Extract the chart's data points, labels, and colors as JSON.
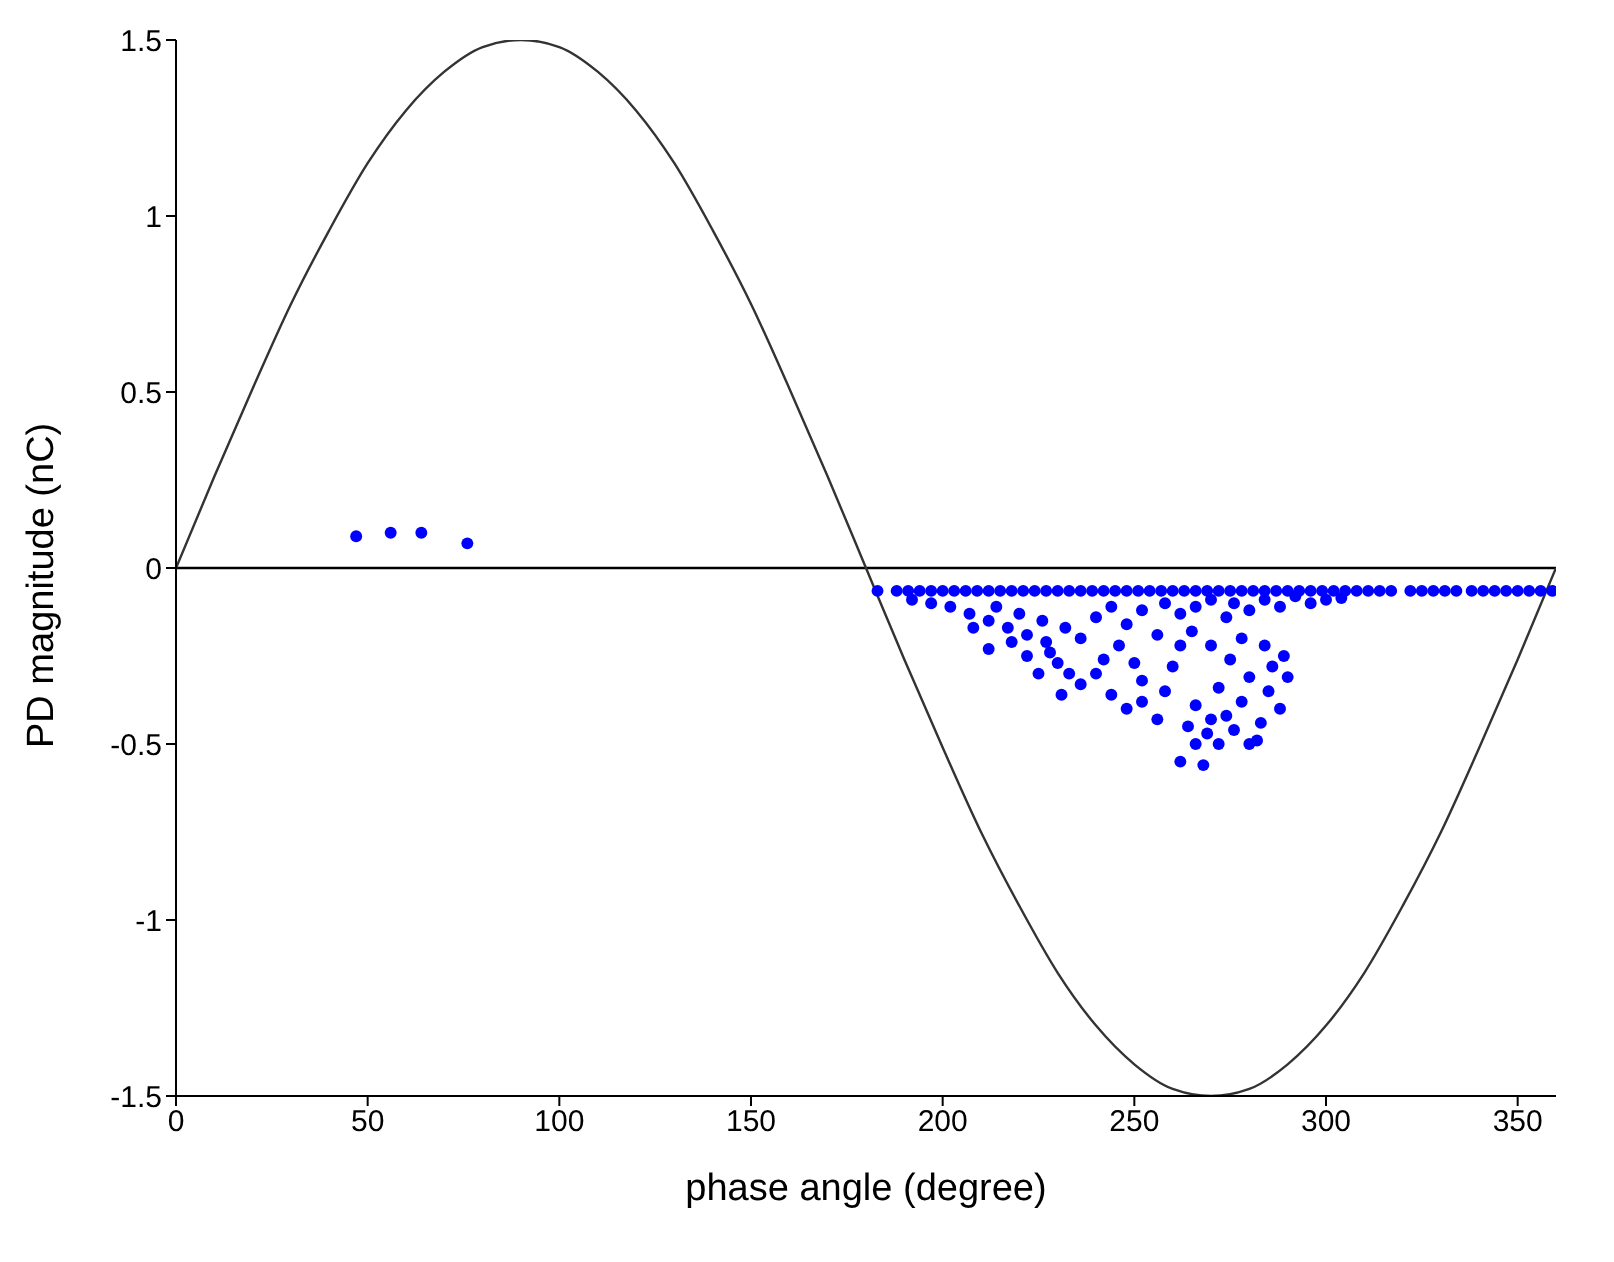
{
  "chart_data": {
    "type": "scatter",
    "xlabel": "phase angle (degree)",
    "ylabel": "PD magnitude (nC)",
    "xlim": [
      0,
      360
    ],
    "xticks": [
      0,
      50,
      100,
      150,
      200,
      250,
      300,
      350
    ],
    "ylim": [
      -1.5,
      1.5
    ],
    "yticks": [
      -1.5,
      -1,
      -0.5,
      0,
      0.5,
      1,
      1.5
    ],
    "grid": false,
    "marker": "circle",
    "ref_lines": [
      {
        "axis": "y",
        "value": 0,
        "label": null,
        "color": "#000000"
      }
    ],
    "series": [
      {
        "type": "line",
        "color": "#333333",
        "marker": "none",
        "x": [
          0,
          10,
          20,
          30,
          40,
          50,
          60,
          70,
          80,
          90,
          100,
          110,
          120,
          130,
          140,
          150,
          160,
          170,
          180,
          190,
          200,
          210,
          220,
          230,
          240,
          250,
          260,
          270,
          280,
          290,
          300,
          310,
          320,
          330,
          340,
          350,
          360
        ],
        "values": [
          0,
          0.26,
          0.51,
          0.75,
          0.96,
          1.15,
          1.3,
          1.41,
          1.48,
          1.5,
          1.48,
          1.41,
          1.3,
          1.15,
          0.96,
          0.75,
          0.51,
          0.26,
          0,
          -0.26,
          -0.51,
          -0.75,
          -0.96,
          -1.15,
          -1.3,
          -1.41,
          -1.48,
          -1.5,
          -1.48,
          -1.41,
          -1.3,
          -1.15,
          -0.96,
          -0.75,
          -0.51,
          -0.26,
          0
        ]
      },
      {
        "color": "#0000ff",
        "x": [
          47,
          56,
          64,
          76,
          183,
          188,
          191,
          194,
          197,
          200,
          203,
          206,
          209,
          212,
          215,
          218,
          221,
          224,
          227,
          230,
          233,
          236,
          239,
          242,
          245,
          248,
          251,
          254,
          257,
          260,
          263,
          266,
          269,
          272,
          275,
          278,
          281,
          284,
          287,
          290,
          293,
          296,
          299,
          302,
          305,
          308,
          311,
          314,
          317,
          322,
          325,
          328,
          331,
          334,
          338,
          341,
          344,
          347,
          350,
          353,
          356,
          359
        ],
        "values": [
          0.09,
          0.1,
          0.1,
          0.07,
          -0.065,
          -0.065,
          -0.065,
          -0.065,
          -0.065,
          -0.065,
          -0.065,
          -0.065,
          -0.065,
          -0.065,
          -0.065,
          -0.065,
          -0.065,
          -0.065,
          -0.065,
          -0.065,
          -0.065,
          -0.065,
          -0.065,
          -0.065,
          -0.065,
          -0.065,
          -0.065,
          -0.065,
          -0.065,
          -0.065,
          -0.065,
          -0.065,
          -0.065,
          -0.065,
          -0.065,
          -0.065,
          -0.065,
          -0.065,
          -0.065,
          -0.065,
          -0.065,
          -0.065,
          -0.065,
          -0.065,
          -0.065,
          -0.065,
          -0.065,
          -0.065,
          -0.065,
          -0.065,
          -0.065,
          -0.065,
          -0.065,
          -0.065,
          -0.065,
          -0.065,
          -0.065,
          -0.065,
          -0.065,
          -0.065,
          -0.065,
          -0.065
        ]
      },
      {
        "color": "#0000ff",
        "x": [
          192,
          197,
          202,
          207,
          212,
          217,
          222,
          227,
          214,
          220,
          226,
          232,
          236,
          240,
          244,
          248,
          252,
          256,
          258,
          262,
          266,
          270,
          274,
          276,
          280,
          284,
          288,
          292,
          296,
          300,
          304,
          208,
          212,
          218,
          222,
          225,
          230,
          233,
          236,
          240,
          242,
          246,
          250,
          252,
          244,
          248,
          252,
          256,
          258,
          260,
          262,
          264,
          266,
          266,
          268,
          270,
          272,
          272,
          275,
          276,
          278,
          280,
          280,
          283,
          284,
          285,
          286,
          288,
          289,
          290,
          278,
          270,
          265,
          228,
          231,
          262,
          269,
          274,
          282
        ],
        "values": [
          -0.09,
          -0.1,
          -0.11,
          -0.13,
          -0.15,
          -0.17,
          -0.19,
          -0.21,
          -0.11,
          -0.13,
          -0.15,
          -0.17,
          -0.2,
          -0.14,
          -0.11,
          -0.16,
          -0.12,
          -0.19,
          -0.1,
          -0.13,
          -0.11,
          -0.09,
          -0.14,
          -0.1,
          -0.12,
          -0.09,
          -0.11,
          -0.08,
          -0.1,
          -0.09,
          -0.085,
          -0.17,
          -0.23,
          -0.21,
          -0.25,
          -0.3,
          -0.27,
          -0.3,
          -0.33,
          -0.3,
          -0.26,
          -0.22,
          -0.27,
          -0.32,
          -0.36,
          -0.4,
          -0.38,
          -0.43,
          -0.35,
          -0.28,
          -0.22,
          -0.45,
          -0.39,
          -0.5,
          -0.56,
          -0.43,
          -0.34,
          -0.5,
          -0.26,
          -0.46,
          -0.38,
          -0.31,
          -0.5,
          -0.44,
          -0.22,
          -0.35,
          -0.28,
          -0.4,
          -0.25,
          -0.31,
          -0.2,
          -0.22,
          -0.18,
          -0.24,
          -0.36,
          -0.55,
          -0.47,
          -0.42,
          -0.49
        ]
      }
    ]
  }
}
